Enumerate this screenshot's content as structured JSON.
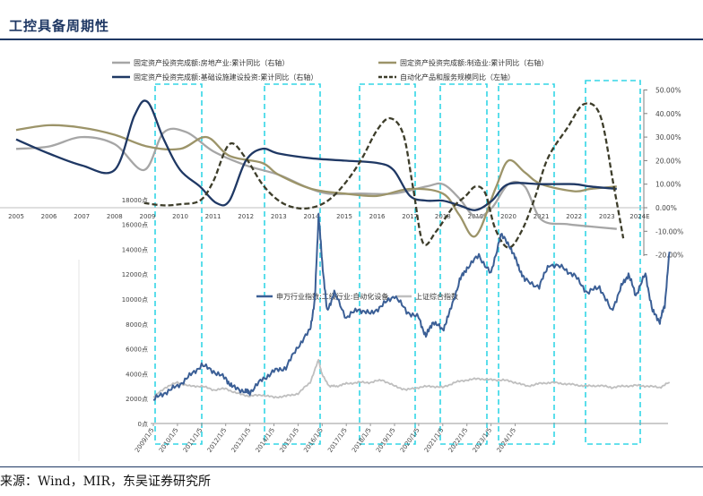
{
  "title": "工控具备周期性",
  "source": "来源：Wind，MIR，东吴证券研究所",
  "chart_data": [
    {
      "type": "line",
      "x": [
        "2005",
        "2006",
        "2007",
        "2008",
        "2009",
        "2010",
        "2011",
        "2012",
        "2013",
        "2014",
        "2015",
        "2016",
        "2017",
        "2018",
        "2019",
        "2020",
        "2021",
        "2022",
        "2023",
        "2024E"
      ],
      "series": [
        {
          "name": "固定资产投资完成额:房地产业:累计同比（右轴）",
          "axis": "right",
          "color": "#a6a6a6",
          "values": [
            [
              0,
              25
            ],
            [
              1,
              26
            ],
            [
              2,
              30
            ],
            [
              3,
              27
            ],
            [
              3.9,
              16
            ],
            [
              4.5,
              32
            ],
            [
              5.2,
              32
            ],
            [
              6,
              24
            ],
            [
              7,
              18
            ],
            [
              8,
              14
            ],
            [
              8.8,
              9
            ],
            [
              9.5,
              6
            ],
            [
              10.5,
              6
            ],
            [
              11.5,
              6
            ],
            [
              12.5,
              9
            ],
            [
              13,
              10
            ],
            [
              13.5,
              4
            ],
            [
              14,
              -4
            ],
            [
              14.5,
              0
            ],
            [
              15,
              10
            ],
            [
              15.5,
              9
            ],
            [
              16,
              -5
            ],
            [
              16.8,
              -7
            ],
            [
              17.5,
              -8
            ],
            [
              18.3,
              -9
            ]
          ]
        },
        {
          "name": "固定资产投资完成额:制造业:累计同比（右轴）",
          "axis": "right",
          "color": "#9c9469",
          "values": [
            [
              0,
              33
            ],
            [
              1,
              35
            ],
            [
              2,
              34
            ],
            [
              3,
              31
            ],
            [
              4,
              26
            ],
            [
              5,
              25
            ],
            [
              5.8,
              30
            ],
            [
              6.5,
              22
            ],
            [
              7.5,
              19
            ],
            [
              8,
              14
            ],
            [
              9,
              8
            ],
            [
              10,
              6
            ],
            [
              11,
              5
            ],
            [
              12,
              8
            ],
            [
              13,
              6
            ],
            [
              13.5,
              -3
            ],
            [
              14,
              -12
            ],
            [
              14.6,
              8
            ],
            [
              15,
              20
            ],
            [
              15.5,
              15
            ],
            [
              16,
              10
            ],
            [
              17,
              7
            ],
            [
              17.5,
              8
            ],
            [
              18.3,
              9
            ]
          ]
        },
        {
          "name": "固定资产投资完成额:基础设施建设投资:累计同比（右轴）",
          "axis": "right",
          "color": "#1f3864",
          "values": [
            [
              0,
              29
            ],
            [
              1,
              23
            ],
            [
              2,
              18
            ],
            [
              3,
              16
            ],
            [
              3.6,
              39
            ],
            [
              4,
              45
            ],
            [
              4.5,
              29
            ],
            [
              5,
              16
            ],
            [
              5.6,
              9
            ],
            [
              6.1,
              2
            ],
            [
              6.5,
              3
            ],
            [
              7,
              20
            ],
            [
              7.5,
              25
            ],
            [
              8,
              23
            ],
            [
              9,
              21
            ],
            [
              10,
              20
            ],
            [
              11,
              19
            ],
            [
              11.5,
              16
            ],
            [
              12,
              5
            ],
            [
              12.5,
              3
            ],
            [
              13,
              3
            ],
            [
              13.5,
              1
            ],
            [
              14,
              -1
            ],
            [
              14.5,
              3
            ],
            [
              15,
              10
            ],
            [
              16,
              10
            ],
            [
              17,
              10
            ],
            [
              17.5,
              9
            ],
            [
              18.3,
              8
            ]
          ]
        },
        {
          "name": "自动化产品和服务规模同比（左轴）",
          "axis": "left",
          "dashed": true,
          "color": "#3d3d2a",
          "values": [
            [
              3.9,
              2
            ],
            [
              4.5,
              1
            ],
            [
              5,
              1.5
            ],
            [
              5.6,
              3
            ],
            [
              6,
              11
            ],
            [
              6.5,
              27
            ],
            [
              7,
              21
            ],
            [
              7.5,
              10
            ],
            [
              8,
              3
            ],
            [
              8.5,
              0
            ],
            [
              9,
              0
            ],
            [
              9.5,
              3
            ],
            [
              10,
              10
            ],
            [
              10.5,
              20
            ],
            [
              11,
              33
            ],
            [
              11.4,
              38
            ],
            [
              11.8,
              31
            ],
            [
              12.1,
              8
            ],
            [
              12.4,
              -15
            ],
            [
              12.8,
              -10
            ],
            [
              13.3,
              0
            ],
            [
              13.7,
              5
            ],
            [
              14,
              9
            ],
            [
              14.3,
              6
            ],
            [
              14.6,
              -9
            ],
            [
              15,
              -17
            ],
            [
              15.4,
              -10
            ],
            [
              15.8,
              4
            ],
            [
              16.2,
              21
            ],
            [
              16.8,
              34
            ],
            [
              17.3,
              44
            ],
            [
              17.8,
              39
            ],
            [
              18.2,
              10
            ],
            [
              18.5,
              -13
            ]
          ]
        }
      ],
      "right_axis": {
        "ticks": [
          "50.00%",
          "40.00%",
          "30.00%",
          "20.00%",
          "10.00%",
          "0.00%",
          "-10.00%",
          "-20.00%"
        ],
        "ylim": [
          -20,
          50
        ]
      },
      "left_axis": {
        "ylim": [
          -20,
          50
        ]
      }
    },
    {
      "type": "line",
      "x": [
        "2009/1/5",
        "2010/1/5",
        "2011/1/5",
        "2012/1/5",
        "2013/1/5",
        "2014/1/5",
        "2015/1/5",
        "2016/1/5",
        "2017/1/5",
        "2018/1/5",
        "2019/1/5",
        "2020/1/5",
        "2021/1/5",
        "2022/1/5",
        "2023/1/5",
        "2024/1/5"
      ],
      "series": [
        {
          "name": "申万行业指数:二级行业:自动化设备",
          "color": "#3b5f96",
          "values": [
            [
              0,
              1900
            ],
            [
              0.5,
              2500
            ],
            [
              1,
              3000
            ],
            [
              1.5,
              3800
            ],
            [
              2,
              4700
            ],
            [
              2.5,
              4200
            ],
            [
              3,
              3600
            ],
            [
              3.3,
              2900
            ],
            [
              3.8,
              2600
            ],
            [
              4,
              2500
            ],
            [
              4.5,
              3500
            ],
            [
              5,
              4200
            ],
            [
              5.5,
              4500
            ],
            [
              6,
              6200
            ],
            [
              6.5,
              7500
            ],
            [
              6.7,
              10000
            ],
            [
              6.85,
              16800
            ],
            [
              7,
              13000
            ],
            [
              7.2,
              9000
            ],
            [
              7.5,
              10500
            ],
            [
              8,
              8500
            ],
            [
              8.5,
              9200
            ],
            [
              9,
              8800
            ],
            [
              9.5,
              9500
            ],
            [
              10,
              10300
            ],
            [
              10.5,
              9000
            ],
            [
              11,
              8500
            ],
            [
              11.3,
              7000
            ],
            [
              11.6,
              8200
            ],
            [
              12,
              7500
            ],
            [
              12.3,
              9000
            ],
            [
              12.7,
              11500
            ],
            [
              13,
              12500
            ],
            [
              13.5,
              13500
            ],
            [
              14,
              12000
            ],
            [
              14.4,
              15200
            ],
            [
              14.8,
              14200
            ],
            [
              15.1,
              12800
            ],
            [
              15.4,
              11500
            ],
            [
              16,
              11000
            ],
            [
              16.4,
              12800
            ],
            [
              17,
              12500
            ],
            [
              17.5,
              11800
            ],
            [
              18,
              10500
            ],
            [
              18.5,
              11000
            ],
            [
              19,
              9000
            ],
            [
              19.4,
              11000
            ],
            [
              19.7,
              12000
            ],
            [
              20,
              10300
            ],
            [
              20.4,
              12000
            ],
            [
              20.7,
              9000
            ],
            [
              21,
              8200
            ],
            [
              21.2,
              9500
            ],
            [
              21.4,
              13800
            ]
          ]
        },
        {
          "name": "上证综合指数",
          "color": "#bfbfbf",
          "values": [
            [
              0,
              2100
            ],
            [
              0.5,
              2900
            ],
            [
              1,
              3300
            ],
            [
              1.5,
              3000
            ],
            [
              2,
              3000
            ],
            [
              2.5,
              2700
            ],
            [
              3,
              2800
            ],
            [
              3.5,
              2400
            ],
            [
              4,
              2200
            ],
            [
              4.5,
              2300
            ],
            [
              5,
              2100
            ],
            [
              5.5,
              2200
            ],
            [
              6,
              2400
            ],
            [
              6.5,
              3300
            ],
            [
              6.85,
              5100
            ],
            [
              7,
              3900
            ],
            [
              7.3,
              3000
            ],
            [
              7.6,
              3000
            ],
            [
              8,
              3200
            ],
            [
              8.5,
              3300
            ],
            [
              9,
              3300
            ],
            [
              9.5,
              3500
            ],
            [
              10,
              3000
            ],
            [
              10.5,
              2700
            ],
            [
              11,
              2900
            ],
            [
              11.5,
              3000
            ],
            [
              12,
              2900
            ],
            [
              12.5,
              3300
            ],
            [
              13,
              3500
            ],
            [
              13.5,
              3600
            ],
            [
              14,
              3500
            ],
            [
              14.5,
              3500
            ],
            [
              15,
              3300
            ],
            [
              15.5,
              3000
            ],
            [
              16,
              3200
            ],
            [
              16.5,
              3300
            ],
            [
              17,
              3200
            ],
            [
              17.5,
              3100
            ],
            [
              18,
              3000
            ],
            [
              18.5,
              3050
            ],
            [
              19,
              2900
            ],
            [
              19.5,
              3000
            ],
            [
              20,
              3050
            ],
            [
              20.5,
              3000
            ],
            [
              21,
              2900
            ],
            [
              21.4,
              3300
            ]
          ]
        }
      ],
      "y_axis": {
        "ticks": [
          "0点",
          "2000点",
          "4000点",
          "6000点",
          "8000点",
          "10000点",
          "12000点",
          "14000点",
          "16000点",
          "18000点"
        ],
        "ylim": [
          0,
          18000
        ]
      }
    }
  ]
}
